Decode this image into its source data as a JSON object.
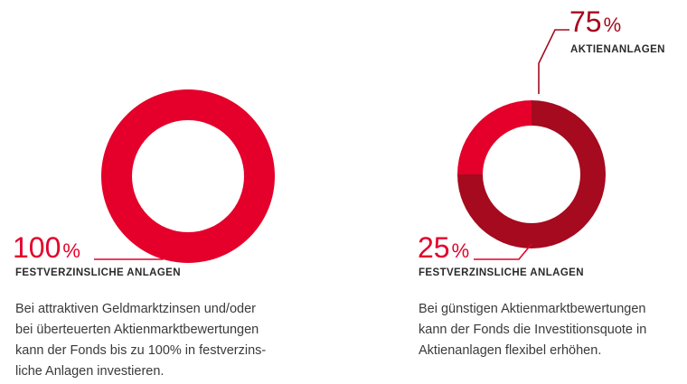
{
  "chart_data": [
    {
      "type": "pie",
      "style": "donut",
      "slices": [
        {
          "label": "FESTVERZINSLICHE ANLAGEN",
          "value": 100,
          "color": "#e4002b"
        }
      ],
      "labels": [
        {
          "value": "100",
          "unit": "%",
          "caption": "FESTVERZINSLICHE ANLAGEN"
        }
      ],
      "description": [
        "Bei attraktiven Geldmarktzinsen und/oder",
        "bei überteuerten Aktienmarktbewertungen",
        "kann der Fonds bis zu 100% in festverzins-",
        "liche Anlagen investieren."
      ]
    },
    {
      "type": "pie",
      "style": "donut",
      "slices": [
        {
          "label": "AKTIENANLAGEN",
          "value": 75,
          "color": "#a50a1e"
        },
        {
          "label": "FESTVERZINSLICHE ANLAGEN",
          "value": 25,
          "color": "#e4002b"
        }
      ],
      "labels": [
        {
          "value": "75",
          "unit": "%",
          "caption": "AKTIENANLAGEN"
        },
        {
          "value": "25",
          "unit": "%",
          "caption": "FESTVERZINSLICHE ANLAGEN"
        }
      ],
      "description": [
        "Bei günstigen Aktienmarktbewertungen",
        "kann der Fonds die Investitionsquote in",
        "Aktienanlagen flexibel erhöhen."
      ]
    }
  ]
}
